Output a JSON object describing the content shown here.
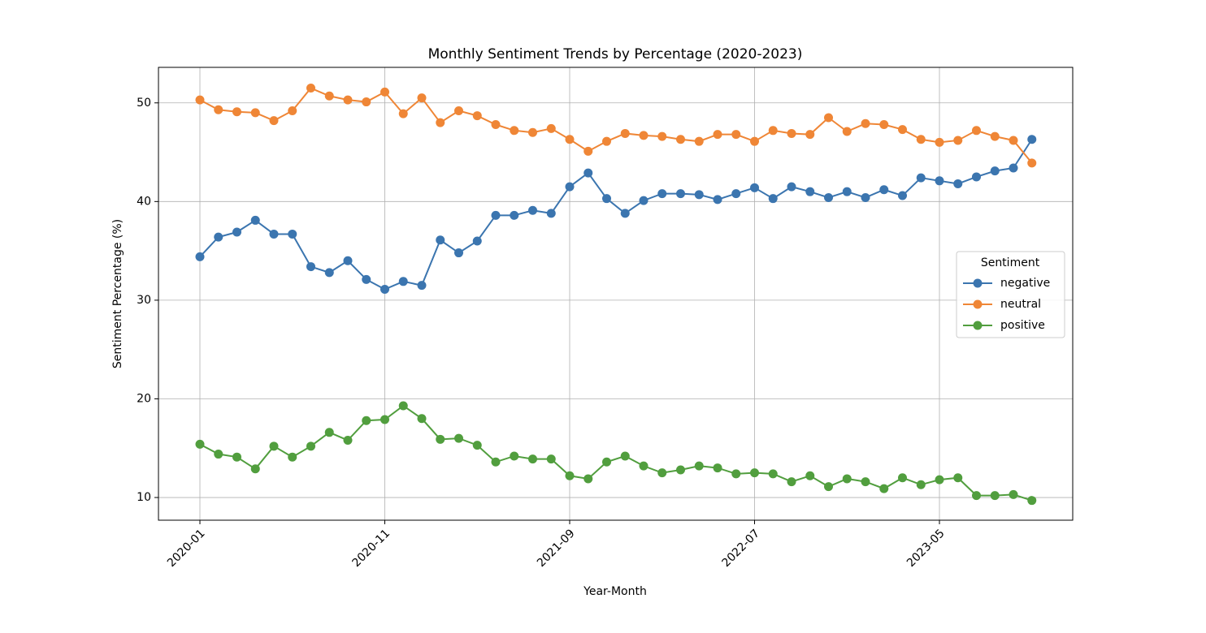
{
  "chart_data": {
    "type": "line",
    "title": "Monthly Sentiment Trends by Percentage (2020-2023)",
    "x_label": "Year-Month",
    "y_label": "Sentiment Percentage (%)",
    "legend_title": "Sentiment",
    "legend_position": "right",
    "grid": true,
    "categories": [
      "2020-01",
      null,
      null,
      null,
      null,
      null,
      null,
      null,
      null,
      null,
      "2020-11",
      null,
      null,
      null,
      null,
      null,
      null,
      null,
      null,
      null,
      "2021-09",
      null,
      null,
      null,
      null,
      null,
      null,
      null,
      null,
      null,
      "2022-07",
      null,
      null,
      null,
      null,
      null,
      null,
      null,
      null,
      null,
      "2023-05",
      null,
      null,
      null,
      null,
      null
    ],
    "ylim": [
      7.7,
      53.6
    ],
    "yticks": [
      10,
      20,
      30,
      40,
      50
    ],
    "series": [
      {
        "name": "negative",
        "color": "#3b75af",
        "values": [
          34.4,
          36.4,
          36.9,
          38.1,
          36.7,
          36.7,
          33.4,
          32.8,
          34.0,
          32.1,
          31.1,
          31.9,
          31.5,
          36.1,
          34.8,
          36.0,
          38.6,
          38.6,
          39.1,
          38.8,
          41.5,
          42.9,
          40.3,
          38.8,
          40.1,
          40.8,
          40.8,
          40.7,
          40.2,
          40.8,
          41.4,
          40.3,
          41.5,
          41.0,
          40.4,
          41.0,
          40.4,
          41.2,
          40.6,
          42.4,
          42.1,
          41.8,
          42.5,
          43.1,
          43.4,
          46.3
        ]
      },
      {
        "name": "neutral",
        "color": "#ef8636",
        "values": [
          50.3,
          49.3,
          49.1,
          49.0,
          48.2,
          49.2,
          51.5,
          50.7,
          50.3,
          50.1,
          51.1,
          48.9,
          50.5,
          48.0,
          49.2,
          48.7,
          47.8,
          47.2,
          47.0,
          47.4,
          46.3,
          45.1,
          46.1,
          46.9,
          46.7,
          46.6,
          46.3,
          46.1,
          46.8,
          46.8,
          46.1,
          47.2,
          46.9,
          46.8,
          48.5,
          47.1,
          47.9,
          47.8,
          47.3,
          46.3,
          46.0,
          46.2,
          47.2,
          46.6,
          46.2,
          43.9
        ]
      },
      {
        "name": "positive",
        "color": "#519e3e",
        "values": [
          15.4,
          14.4,
          14.1,
          12.9,
          15.2,
          14.1,
          15.2,
          16.6,
          15.8,
          17.8,
          17.9,
          19.3,
          18.0,
          15.9,
          16.0,
          15.3,
          13.6,
          14.2,
          13.9,
          13.9,
          12.2,
          11.9,
          13.6,
          14.2,
          13.2,
          12.5,
          12.8,
          13.2,
          13.0,
          12.4,
          12.5,
          12.4,
          11.6,
          12.2,
          11.1,
          11.9,
          11.6,
          10.9,
          12.0,
          11.3,
          11.8,
          12.0,
          10.2,
          10.2,
          10.3,
          9.7
        ]
      }
    ]
  }
}
